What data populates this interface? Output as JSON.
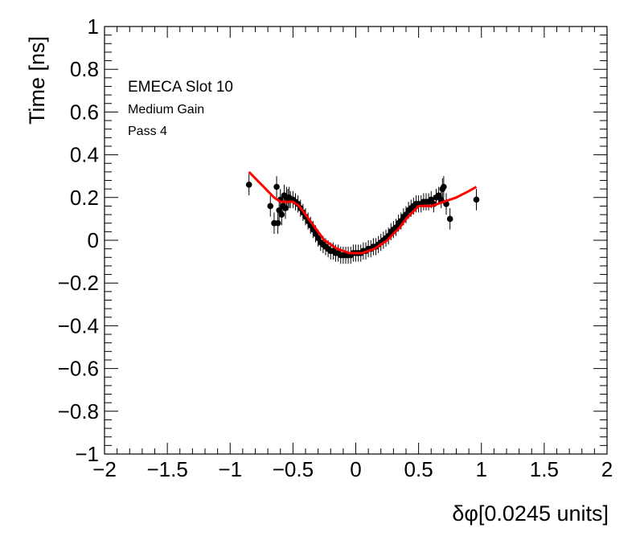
{
  "chart_data": {
    "type": "scatter",
    "xlabel": "δφ[0.0245 units]",
    "ylabel": "Time [ns]",
    "xlim": [
      -2,
      2
    ],
    "ylim": [
      -1,
      1
    ],
    "x_ticks": [
      -2,
      -1.5,
      -1,
      -0.5,
      0,
      0.5,
      1,
      1.5,
      2
    ],
    "x_tick_labels": [
      "−2",
      "−1.5",
      "−1",
      "−0.5",
      "0",
      "0.5",
      "1",
      "1.5",
      "2"
    ],
    "y_ticks": [
      -1,
      -0.8,
      -0.6,
      -0.4,
      -0.2,
      0,
      0.2,
      0.4,
      0.6,
      0.8,
      1
    ],
    "y_tick_labels": [
      "−1",
      "−0.8",
      "−0.6",
      "−0.4",
      "−0.2",
      "0",
      "0.2",
      "0.4",
      "0.6",
      "0.8",
      "1"
    ],
    "grid": false,
    "annotations": [
      "EMECA Slot 10",
      "Medium Gain",
      "Pass 4"
    ],
    "colors": {
      "points": "#000000",
      "fit": "#ff0000",
      "frame": "#000000"
    },
    "points": {
      "x": [
        -0.85,
        -0.68,
        -0.65,
        -0.63,
        -0.62,
        -0.61,
        -0.6,
        -0.59,
        -0.58,
        -0.57,
        -0.56,
        -0.55,
        -0.54,
        -0.53,
        -0.52,
        -0.5,
        -0.48,
        -0.46,
        -0.44,
        -0.42,
        -0.4,
        -0.38,
        -0.36,
        -0.34,
        -0.32,
        -0.3,
        -0.28,
        -0.26,
        -0.24,
        -0.22,
        -0.2,
        -0.18,
        -0.16,
        -0.14,
        -0.12,
        -0.1,
        -0.08,
        -0.06,
        -0.04,
        -0.02,
        0.0,
        0.02,
        0.04,
        0.06,
        0.08,
        0.1,
        0.12,
        0.14,
        0.16,
        0.18,
        0.2,
        0.22,
        0.24,
        0.26,
        0.28,
        0.3,
        0.32,
        0.34,
        0.36,
        0.38,
        0.4,
        0.42,
        0.44,
        0.46,
        0.48,
        0.5,
        0.52,
        0.54,
        0.56,
        0.58,
        0.6,
        0.62,
        0.64,
        0.66,
        0.68,
        0.69,
        0.7,
        0.72,
        0.75,
        0.96
      ],
      "y": [
        0.26,
        0.16,
        0.08,
        0.25,
        0.08,
        0.14,
        0.19,
        0.12,
        0.16,
        0.21,
        0.15,
        0.2,
        0.19,
        0.2,
        0.19,
        0.19,
        0.18,
        0.17,
        0.15,
        0.13,
        0.11,
        0.09,
        0.07,
        0.05,
        0.03,
        0.01,
        -0.01,
        -0.02,
        -0.03,
        -0.04,
        -0.05,
        -0.05,
        -0.06,
        -0.06,
        -0.07,
        -0.07,
        -0.07,
        -0.07,
        -0.07,
        -0.06,
        -0.06,
        -0.06,
        -0.06,
        -0.05,
        -0.05,
        -0.04,
        -0.04,
        -0.03,
        -0.03,
        -0.02,
        -0.01,
        0.0,
        0.01,
        0.02,
        0.04,
        0.05,
        0.06,
        0.08,
        0.09,
        0.11,
        0.12,
        0.14,
        0.15,
        0.16,
        0.17,
        0.17,
        0.17,
        0.18,
        0.18,
        0.18,
        0.19,
        0.17,
        0.2,
        0.21,
        0.19,
        0.24,
        0.25,
        0.17,
        0.1,
        0.19
      ],
      "yerr": [
        0.05,
        0.05,
        0.05,
        0.05,
        0.05,
        0.05,
        0.05,
        0.05,
        0.05,
        0.05,
        0.05,
        0.05,
        0.05,
        0.05,
        0.04,
        0.04,
        0.04,
        0.04,
        0.04,
        0.04,
        0.04,
        0.04,
        0.04,
        0.04,
        0.04,
        0.04,
        0.04,
        0.04,
        0.04,
        0.04,
        0.04,
        0.04,
        0.04,
        0.04,
        0.04,
        0.04,
        0.04,
        0.04,
        0.04,
        0.04,
        0.04,
        0.04,
        0.04,
        0.04,
        0.04,
        0.04,
        0.04,
        0.04,
        0.04,
        0.04,
        0.04,
        0.04,
        0.04,
        0.04,
        0.04,
        0.04,
        0.04,
        0.04,
        0.04,
        0.04,
        0.04,
        0.04,
        0.04,
        0.04,
        0.04,
        0.04,
        0.04,
        0.04,
        0.04,
        0.04,
        0.04,
        0.04,
        0.04,
        0.04,
        0.04,
        0.05,
        0.05,
        0.05,
        0.05,
        0.05
      ]
    },
    "fit": {
      "x": [
        -0.85,
        -0.8,
        -0.75,
        -0.7,
        -0.65,
        -0.6,
        -0.55,
        -0.5,
        -0.45,
        -0.4,
        -0.35,
        -0.3,
        -0.25,
        -0.2,
        -0.15,
        -0.1,
        -0.05,
        0.0,
        0.05,
        0.1,
        0.15,
        0.2,
        0.25,
        0.3,
        0.35,
        0.4,
        0.45,
        0.5,
        0.55,
        0.6,
        0.65,
        0.7,
        0.8,
        0.9,
        0.96
      ],
      "y": [
        0.32,
        0.29,
        0.26,
        0.23,
        0.2,
        0.18,
        0.18,
        0.18,
        0.16,
        0.12,
        0.08,
        0.04,
        0.0,
        -0.02,
        -0.04,
        -0.05,
        -0.06,
        -0.06,
        -0.06,
        -0.05,
        -0.04,
        -0.02,
        0.0,
        0.03,
        0.06,
        0.1,
        0.13,
        0.16,
        0.16,
        0.16,
        0.17,
        0.18,
        0.2,
        0.23,
        0.25
      ]
    }
  }
}
